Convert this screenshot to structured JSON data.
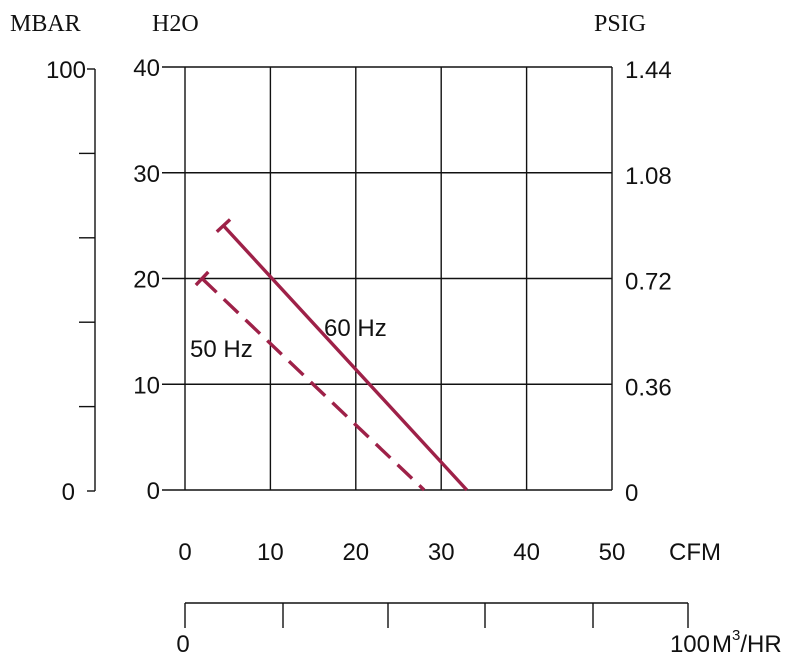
{
  "chart_data": {
    "type": "line",
    "unit_labels": {
      "mbar": "MBAR",
      "h2o": "H2O",
      "psig": "PSIG",
      "cfm": "CFM",
      "m3hr_prefix": "M",
      "m3hr_sup": "3",
      "m3hr_suffix": "/HR"
    },
    "x": {
      "min": 0,
      "max": 50,
      "ticks": [
        "0",
        "10",
        "20",
        "30",
        "40",
        "50"
      ]
    },
    "y": {
      "min": 0,
      "max": 40,
      "ticks": [
        "0",
        "10",
        "20",
        "30",
        "40"
      ]
    },
    "y_right_ticks": [
      "0",
      "0.36",
      "0.72",
      "1.08",
      "1.44"
    ],
    "y_left_scale": {
      "min": 0,
      "max": 100,
      "ticks": [
        "0",
        "100"
      ]
    },
    "x_bottom_scale": {
      "min": 0,
      "max": 100,
      "ticks": [
        "0",
        "100"
      ]
    },
    "grid": true,
    "series": [
      {
        "name": "60 Hz",
        "style": "solid",
        "color": "#9e2148",
        "points": [
          [
            4.5,
            25
          ],
          [
            33,
            0
          ]
        ]
      },
      {
        "name": "50 Hz",
        "style": "dashed",
        "color": "#9e2148",
        "points": [
          [
            2,
            20
          ],
          [
            28,
            0
          ]
        ]
      }
    ]
  }
}
